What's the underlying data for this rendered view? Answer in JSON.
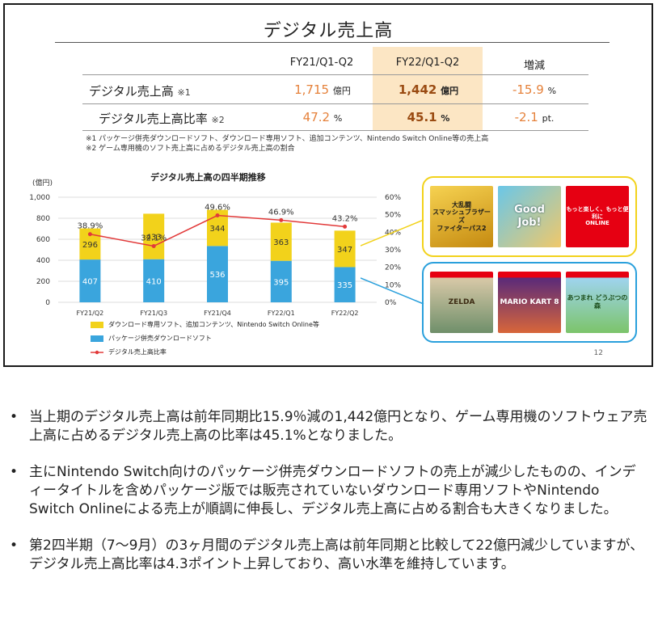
{
  "slide": {
    "title": "デジタル売上高",
    "page_number": "12",
    "table": {
      "headers": [
        "FY21/Q1-Q2",
        "FY22/Q1-Q2",
        "増減"
      ],
      "rows": [
        {
          "label": "デジタル売上高",
          "note": "※1",
          "v1": "1,715",
          "u1": "億円",
          "v2": "1,442",
          "u2": "億円",
          "v3": "-15.9",
          "u3": "%"
        },
        {
          "label": "デジタル売上高比率",
          "note": "※2",
          "v1": "47.2",
          "u1": "%",
          "v2": "45.1",
          "u2": "%",
          "v3": "-2.1",
          "u3": "pt."
        }
      ],
      "footnotes": [
        "※1 パッケージ併売ダウンロードソフト、ダウンロード専用ソフト、追加コンテンツ、Nintendo Switch Online等の売上高",
        "※2 ゲーム専用機のソフト売上高に占めるデジタル売上高の割合"
      ]
    },
    "chart_title": "デジタル売上高の四半期推移",
    "panels": {
      "top": {
        "items": [
          {
            "icon": "smash-bros-fighters-pass-art",
            "title": "大乱闘\nスマッシュブラザーズ\nファイターパス2"
          },
          {
            "icon": "good-job-art",
            "title": "Good\nJob!"
          },
          {
            "icon": "nintendo-switch-online-art",
            "title": "もっと楽しく、もっと便利に\nONLINE"
          }
        ],
        "color": "#f2d21b"
      },
      "bottom": {
        "items": [
          {
            "icon": "zelda-package-art",
            "title": "ZELDA"
          },
          {
            "icon": "mario-kart-package-art",
            "title": "MARIO KART 8"
          },
          {
            "icon": "animal-crossing-package-art",
            "title": "あつまれ どうぶつの森"
          }
        ],
        "color": "#2aa0dc"
      }
    }
  },
  "chart_data": {
    "type": "bar",
    "title": "デジタル売上高の四半期推移",
    "categories": [
      "FY21/Q2",
      "FY21/Q3",
      "FY21/Q4",
      "FY22/Q1",
      "FY22/Q2"
    ],
    "stacked": true,
    "y_unit": "(億円)",
    "ylim": [
      0,
      1000
    ],
    "y_ticks": [
      "0",
      "200",
      "400",
      "600",
      "800",
      "1,000"
    ],
    "y2_ticks": [
      "0%",
      "10%",
      "20%",
      "30%",
      "40%",
      "50%",
      "60%"
    ],
    "y2lim": [
      0,
      60
    ],
    "series": [
      {
        "name": "パッケージ併売ダウンロードソフト",
        "values": [
          407,
          410,
          536,
          395,
          335
        ],
        "color": "#3aa5dd"
      },
      {
        "name": "ダウンロード専用ソフト、追加コンテンツ、Nintendo Switch Online等",
        "values": [
          296,
          433,
          344,
          363,
          347
        ],
        "color": "#f2d21b"
      }
    ],
    "line": {
      "name": "デジタル売上高比率",
      "values": [
        38.9,
        32.1,
        49.6,
        46.9,
        43.2
      ],
      "labels": [
        "38.9%",
        "32.1%",
        "49.6%",
        "46.9%",
        "43.2%"
      ],
      "color": "#e23a3a"
    }
  },
  "bullets": [
    "当上期のデジタル売上高は前年同期比15.9％減の1,442億円となり、ゲーム専用機のソフトウェア売上高に占めるデジタル売上高の比率は45.1%となりました。",
    "主にNintendo Switch向けのパッケージ併売ダウンロードソフトの売上が減少したものの、インディータイトルを含めパッケージ版では販売されていないダウンロード専用ソフトやNintendo Switch Onlineによる売上が順調に伸長し、デジタル売上高に占める割合も大きくなりました。",
    "第2四半期（7〜9月）の3ヶ月間のデジタル売上高は前年同期と比較して22億円減少していますが、デジタル売上高比率は4.3ポイント上昇しており、高い水準を維持しています。"
  ]
}
